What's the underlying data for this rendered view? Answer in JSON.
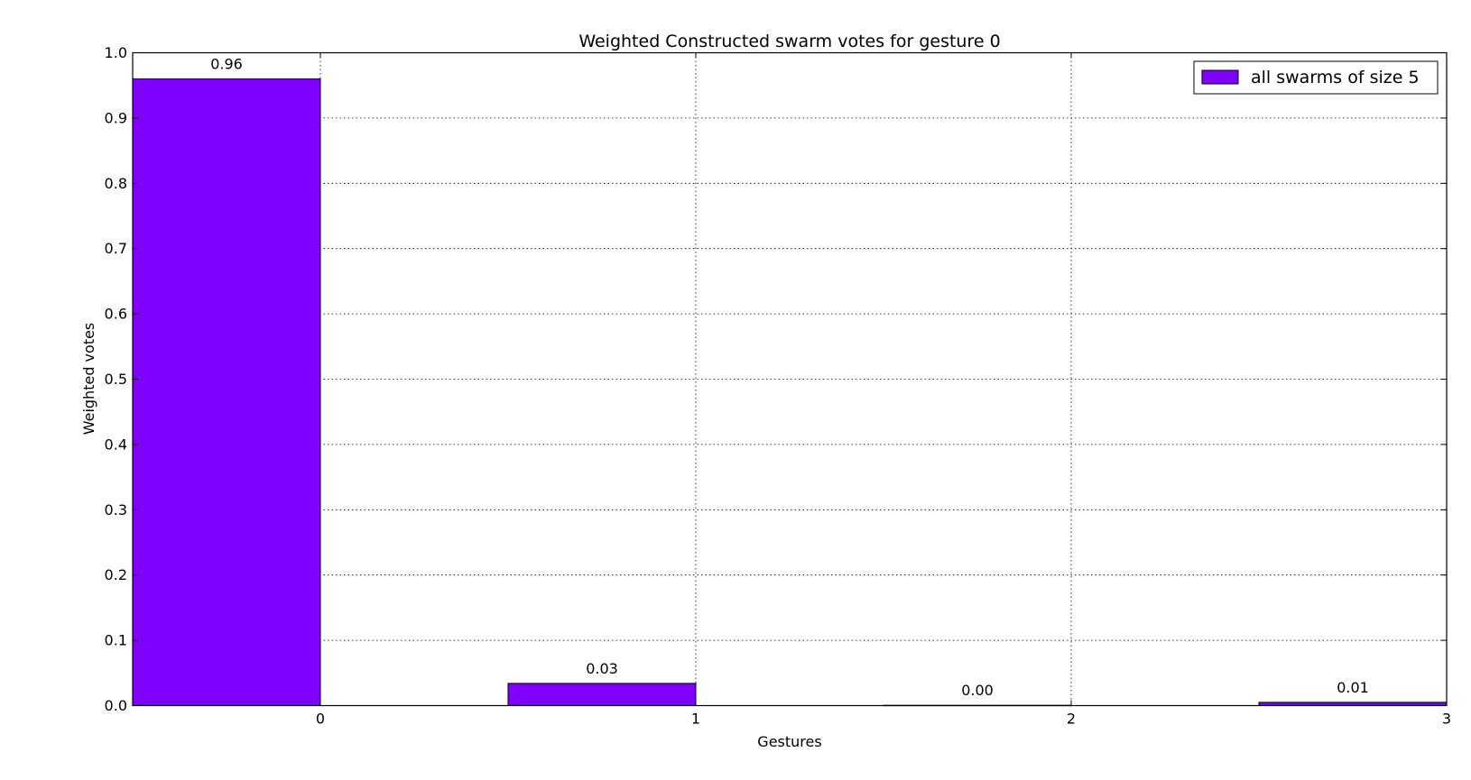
{
  "chart_data": {
    "type": "bar",
    "title": "Weighted Constructed swarm votes for gesture 0",
    "xlabel": "Gestures",
    "ylabel": "Weighted votes",
    "categories": [
      "0",
      "1",
      "2",
      "3"
    ],
    "xlim": [
      -0.5,
      3
    ],
    "ylim": [
      0,
      1.0
    ],
    "yticks": [
      "0.0",
      "0.1",
      "0.2",
      "0.3",
      "0.4",
      "0.5",
      "0.6",
      "0.7",
      "0.8",
      "0.9",
      "1.0"
    ],
    "series": [
      {
        "name": "all swarms of size 5",
        "color": "#7f00ff",
        "values": [
          0.96,
          0.034,
          0.0005,
          0.005
        ],
        "labels": [
          "0.96",
          "0.03",
          "0.00",
          "0.01"
        ]
      }
    ],
    "grid": true,
    "legend": "upper right"
  }
}
